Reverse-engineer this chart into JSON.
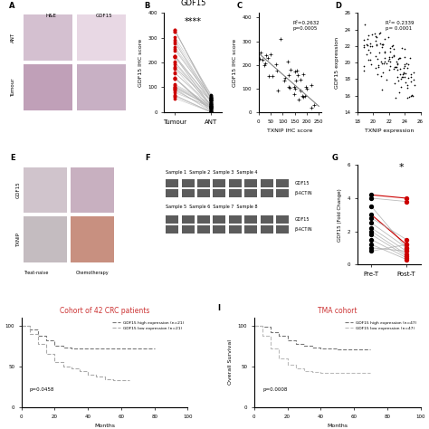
{
  "panel_B": {
    "title": "GDF15",
    "ylabel": "GDF15 IHC score",
    "x_labels": [
      "Tumour",
      "ANT"
    ],
    "significance": "****",
    "ylim": [
      0,
      400
    ],
    "yticks": [
      0,
      100,
      200,
      300,
      400
    ],
    "line_color": "#aaaaaa",
    "mean_color_tumour": "#cc0000",
    "mean_color_ant": "#000000"
  },
  "panel_C": {
    "xlabel": "TXNIP IHC score",
    "ylabel": "GDF15 IHC score",
    "annotation": "R²=0.2632\np=0.0005",
    "xlim": [
      0,
      260
    ],
    "ylim": [
      0,
      420
    ],
    "xticks": [
      0,
      50,
      100,
      150,
      200,
      250
    ],
    "yticks": [
      0,
      100,
      200,
      300,
      400
    ]
  },
  "panel_D": {
    "xlabel": "TXNIP expression",
    "ylabel": "GDF15 expression",
    "annotation": "R²= 0.2339\np= 0.0001",
    "xlim": [
      18,
      26
    ],
    "ylim": [
      14,
      26
    ],
    "xticks": [
      18,
      20,
      22,
      24,
      26
    ],
    "yticks": [
      14,
      16,
      18,
      20,
      22,
      24,
      26
    ]
  },
  "panel_G": {
    "xlabel_pre": "Pre-T",
    "xlabel_post": "Post-T",
    "ylabel": "GDF15 (Fold Change)",
    "significance": "*",
    "ylim": [
      0,
      6
    ],
    "yticks": [
      0,
      2,
      4,
      6
    ],
    "pre_values": [
      4.2,
      4.0,
      3.5,
      3.0,
      2.8,
      2.5,
      2.2,
      2.0,
      1.8,
      1.5,
      1.2,
      1.0,
      0.8
    ],
    "post_values": [
      4.0,
      3.8,
      1.0,
      1.2,
      1.5,
      1.0,
      0.8,
      0.6,
      0.5,
      0.4,
      0.3,
      0.8,
      1.2
    ],
    "highlight_indices": [
      0,
      3
    ],
    "line_color": "#aaaaaa",
    "highlight_color": "#cc0000"
  },
  "panel_H": {
    "title": "Cohort of 42 CRC patients",
    "title_color": "#cc3333",
    "xlabel": "Months",
    "ylabel": "Overall Survival",
    "pvalue": "p=0.0458",
    "legend1": "GDF15 high expression (n=21)",
    "legend2": "GDF15 low expression (n=21)",
    "xlim": [
      0,
      100
    ],
    "ylim": [
      0,
      110
    ],
    "xticks": [
      0,
      20,
      40,
      60,
      80,
      100
    ],
    "yticks": [
      0,
      50,
      100
    ],
    "high_x": [
      0,
      5,
      10,
      15,
      20,
      25,
      30,
      35,
      40,
      45,
      50,
      55,
      60,
      65,
      70,
      80
    ],
    "high_y": [
      100,
      95,
      88,
      82,
      75,
      73,
      72,
      72,
      72,
      72,
      72,
      72,
      72,
      72,
      72,
      72
    ],
    "low_x": [
      0,
      5,
      10,
      15,
      20,
      25,
      30,
      35,
      40,
      45,
      50,
      55,
      60,
      65
    ],
    "low_y": [
      100,
      90,
      78,
      65,
      55,
      50,
      48,
      45,
      40,
      38,
      35,
      33,
      33,
      33
    ],
    "high_color": "#777777",
    "low_color": "#aaaaaa"
  },
  "panel_I": {
    "title": "TMA cohort",
    "title_color": "#cc3333",
    "xlabel": "Months",
    "ylabel": "Overall Survival",
    "pvalue": "p=0.0008",
    "legend1": "GDF15 high expression (n=47)",
    "legend2": "GDF15 low expression (n=47)",
    "xlim": [
      0,
      100
    ],
    "ylim": [
      0,
      110
    ],
    "xticks": [
      0,
      20,
      40,
      60,
      80,
      100
    ],
    "yticks": [
      0,
      50,
      100
    ],
    "high_x": [
      0,
      5,
      10,
      15,
      20,
      25,
      30,
      35,
      40,
      45,
      50,
      55,
      60,
      65,
      70
    ],
    "high_y": [
      100,
      98,
      92,
      88,
      82,
      78,
      75,
      73,
      72,
      72,
      71,
      71,
      71,
      71,
      71
    ],
    "low_x": [
      0,
      5,
      10,
      15,
      20,
      25,
      30,
      35,
      40,
      45,
      50,
      55,
      60,
      65,
      70
    ],
    "low_y": [
      100,
      88,
      72,
      60,
      52,
      48,
      45,
      43,
      42,
      42,
      42,
      42,
      42,
      42,
      42
    ],
    "high_color": "#777777",
    "low_color": "#bbbbbb"
  },
  "bg_color": "#ffffff"
}
